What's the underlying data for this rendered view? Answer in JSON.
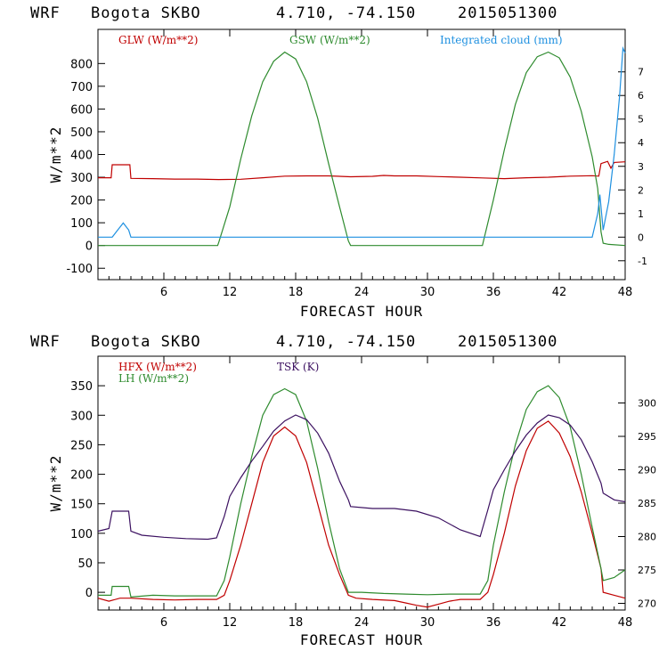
{
  "charts": [
    {
      "title": {
        "model": "WRF",
        "station": "Bogota SKBO",
        "coords": "4.710, -74.150",
        "date": "2015051300"
      },
      "xlabel": "FORECAST HOUR",
      "ylabel": "W/m**2"
    },
    {
      "title": {
        "model": "WRF",
        "station": "Bogota SKBO",
        "coords": "4.710, -74.150",
        "date": "2015051300"
      },
      "xlabel": "FORECAST HOUR",
      "ylabel": "W/m**2"
    }
  ],
  "chart_data": [
    {
      "type": "line",
      "title": "WRF Bogota SKBO 4.710, -74.150 2015051300",
      "xlabel": "FORECAST HOUR",
      "ylabel": "W/m**2",
      "xlim": [
        0,
        48
      ],
      "ylim": [
        -150,
        950
      ],
      "xticks": [
        6,
        12,
        18,
        24,
        30,
        36,
        42,
        48
      ],
      "yticks": [
        -100,
        0,
        100,
        200,
        300,
        400,
        500,
        600,
        700,
        800
      ],
      "y2lim": [
        -1.8,
        8.8
      ],
      "y2ticks": [
        -1,
        0,
        1,
        2,
        3,
        4,
        5,
        6,
        7
      ],
      "series": [
        {
          "name": "GLW (W/m**2)",
          "color": "#c00000",
          "axis": "left",
          "points": [
            [
              0,
              298
            ],
            [
              1.2,
              298
            ],
            [
              1.3,
              355
            ],
            [
              2.9,
              355
            ],
            [
              3,
              295
            ],
            [
              5,
              294
            ],
            [
              7,
              292
            ],
            [
              9,
              292
            ],
            [
              11,
              290
            ],
            [
              13,
              291
            ],
            [
              15,
              298
            ],
            [
              17,
              305
            ],
            [
              19,
              306
            ],
            [
              21,
              306
            ],
            [
              23,
              302
            ],
            [
              25,
              304
            ],
            [
              26,
              308
            ],
            [
              27,
              306
            ],
            [
              29,
              306
            ],
            [
              31,
              303
            ],
            [
              33,
              300
            ],
            [
              35,
              297
            ],
            [
              37,
              294
            ],
            [
              39,
              298
            ],
            [
              41,
              300
            ],
            [
              43,
              305
            ],
            [
              45,
              307
            ],
            [
              45.6,
              305
            ],
            [
              45.8,
              360
            ],
            [
              46.4,
              370
            ],
            [
              46.7,
              340
            ],
            [
              47,
              365
            ],
            [
              48,
              368
            ]
          ]
        },
        {
          "name": "GSW (W/m**2)",
          "color": "#2e8b2e",
          "axis": "left",
          "points": [
            [
              0,
              0
            ],
            [
              10.9,
              0
            ],
            [
              11,
              15
            ],
            [
              12,
              170
            ],
            [
              13,
              380
            ],
            [
              14,
              570
            ],
            [
              15,
              720
            ],
            [
              16,
              810
            ],
            [
              17,
              850
            ],
            [
              18,
              820
            ],
            [
              19,
              720
            ],
            [
              20,
              560
            ],
            [
              21,
              360
            ],
            [
              22,
              170
            ],
            [
              22.8,
              20
            ],
            [
              23,
              0
            ],
            [
              35,
              0
            ],
            [
              35.1,
              20
            ],
            [
              36,
              200
            ],
            [
              37,
              420
            ],
            [
              38,
              620
            ],
            [
              39,
              760
            ],
            [
              40,
              830
            ],
            [
              41,
              850
            ],
            [
              42,
              825
            ],
            [
              43,
              740
            ],
            [
              44,
              590
            ],
            [
              45,
              390
            ],
            [
              45.5,
              250
            ],
            [
              45.8,
              60
            ],
            [
              46,
              10
            ],
            [
              46.5,
              5
            ],
            [
              48,
              0
            ]
          ]
        },
        {
          "name": "Integrated cloud (mm)",
          "color": "#1e90e0",
          "axis": "right",
          "points": [
            [
              0,
              0
            ],
            [
              1.3,
              0
            ],
            [
              1.8,
              0.3
            ],
            [
              2.3,
              0.6
            ],
            [
              2.8,
              0.3
            ],
            [
              3,
              0
            ],
            [
              45,
              0
            ],
            [
              45.5,
              1.0
            ],
            [
              45.7,
              1.8
            ],
            [
              46,
              0.3
            ],
            [
              46.5,
              1.5
            ],
            [
              47,
              3.5
            ],
            [
              47.5,
              6.0
            ],
            [
              47.8,
              8.0
            ],
            [
              48,
              7.8
            ]
          ]
        }
      ]
    },
    {
      "type": "line",
      "title": "WRF Bogota SKBO 4.710, -74.150 2015051300",
      "xlabel": "FORECAST HOUR",
      "ylabel": "W/m**2",
      "xlim": [
        0,
        48
      ],
      "ylim": [
        -30,
        400
      ],
      "xticks": [
        6,
        12,
        18,
        24,
        30,
        36,
        42,
        48
      ],
      "yticks": [
        0,
        50,
        100,
        150,
        200,
        250,
        300,
        350
      ],
      "y2lim": [
        269,
        307
      ],
      "y2ticks": [
        270,
        275,
        280,
        285,
        290,
        295,
        300
      ],
      "series": [
        {
          "name": "HFX (W/m**2)",
          "color": "#c00000",
          "axis": "left",
          "points": [
            [
              0,
              -10
            ],
            [
              1,
              -15
            ],
            [
              2,
              -10
            ],
            [
              3,
              -10
            ],
            [
              5,
              -12
            ],
            [
              7,
              -13
            ],
            [
              9,
              -12
            ],
            [
              10.8,
              -12
            ],
            [
              11.5,
              -5
            ],
            [
              12,
              20
            ],
            [
              13,
              80
            ],
            [
              14,
              150
            ],
            [
              15,
              220
            ],
            [
              16,
              265
            ],
            [
              17,
              280
            ],
            [
              18,
              265
            ],
            [
              19,
              220
            ],
            [
              20,
              150
            ],
            [
              21,
              80
            ],
            [
              22,
              30
            ],
            [
              22.8,
              -5
            ],
            [
              23.5,
              -10
            ],
            [
              25,
              -12
            ],
            [
              27,
              -14
            ],
            [
              28,
              -18
            ],
            [
              29,
              -22
            ],
            [
              30,
              -25
            ],
            [
              31,
              -20
            ],
            [
              32,
              -15
            ],
            [
              33,
              -12
            ],
            [
              34.8,
              -12
            ],
            [
              35.5,
              0
            ],
            [
              36,
              30
            ],
            [
              37,
              100
            ],
            [
              38,
              180
            ],
            [
              39,
              240
            ],
            [
              40,
              278
            ],
            [
              41,
              290
            ],
            [
              42,
              270
            ],
            [
              43,
              230
            ],
            [
              44,
              170
            ],
            [
              45,
              100
            ],
            [
              45.8,
              40
            ],
            [
              46,
              0
            ],
            [
              47,
              -5
            ],
            [
              48,
              -10
            ]
          ]
        },
        {
          "name": "LH (W/m**2)",
          "color": "#2e8b2e",
          "axis": "left",
          "points": [
            [
              0,
              -5
            ],
            [
              1.2,
              -5
            ],
            [
              1.3,
              10
            ],
            [
              2.8,
              10
            ],
            [
              3,
              -8
            ],
            [
              5,
              -5
            ],
            [
              7,
              -6
            ],
            [
              9,
              -6
            ],
            [
              10.8,
              -6
            ],
            [
              11.5,
              20
            ],
            [
              12,
              60
            ],
            [
              13,
              150
            ],
            [
              14,
              230
            ],
            [
              15,
              300
            ],
            [
              16,
              335
            ],
            [
              17,
              345
            ],
            [
              18,
              335
            ],
            [
              19,
              290
            ],
            [
              20,
              210
            ],
            [
              21,
              120
            ],
            [
              22,
              40
            ],
            [
              22.8,
              0
            ],
            [
              24,
              0
            ],
            [
              26,
              -2
            ],
            [
              28,
              -3
            ],
            [
              30,
              -4
            ],
            [
              32,
              -3
            ],
            [
              34.8,
              -3
            ],
            [
              35.5,
              20
            ],
            [
              36,
              80
            ],
            [
              37,
              170
            ],
            [
              38,
              250
            ],
            [
              39,
              310
            ],
            [
              40,
              340
            ],
            [
              41,
              350
            ],
            [
              42,
              330
            ],
            [
              43,
              280
            ],
            [
              44,
              200
            ],
            [
              45,
              110
            ],
            [
              45.8,
              40
            ],
            [
              46,
              20
            ],
            [
              47,
              25
            ],
            [
              48,
              38
            ]
          ]
        },
        {
          "name": "TSK (K)",
          "color": "#3b1060",
          "axis": "right",
          "points": [
            [
              0,
              280.8
            ],
            [
              1,
              281.2
            ],
            [
              1.3,
              283.8
            ],
            [
              2.8,
              283.8
            ],
            [
              3,
              280.8
            ],
            [
              4,
              280.2
            ],
            [
              6,
              279.9
            ],
            [
              8,
              279.7
            ],
            [
              10,
              279.6
            ],
            [
              10.8,
              279.8
            ],
            [
              11.5,
              283
            ],
            [
              12,
              286
            ],
            [
              13,
              288.8
            ],
            [
              14,
              291.3
            ],
            [
              15,
              293.5
            ],
            [
              16,
              295.8
            ],
            [
              17,
              297.3
            ],
            [
              18,
              298.2
            ],
            [
              19,
              297.5
            ],
            [
              20,
              295.5
            ],
            [
              21,
              292.5
            ],
            [
              22,
              288.3
            ],
            [
              22.8,
              285.5
            ],
            [
              23,
              284.5
            ],
            [
              25,
              284.2
            ],
            [
              27,
              284.2
            ],
            [
              29,
              283.8
            ],
            [
              31,
              282.8
            ],
            [
              33,
              281
            ],
            [
              34.8,
              280
            ],
            [
              35.5,
              284
            ],
            [
              36,
              287
            ],
            [
              37,
              290
            ],
            [
              38,
              292.8
            ],
            [
              39,
              295.2
            ],
            [
              40,
              297
            ],
            [
              41,
              298.2
            ],
            [
              42,
              297.8
            ],
            [
              43,
              296.7
            ],
            [
              44,
              294.5
            ],
            [
              45,
              291.2
            ],
            [
              45.8,
              288
            ],
            [
              46,
              286.5
            ],
            [
              47,
              285.5
            ],
            [
              48,
              285.2
            ]
          ]
        }
      ]
    }
  ]
}
